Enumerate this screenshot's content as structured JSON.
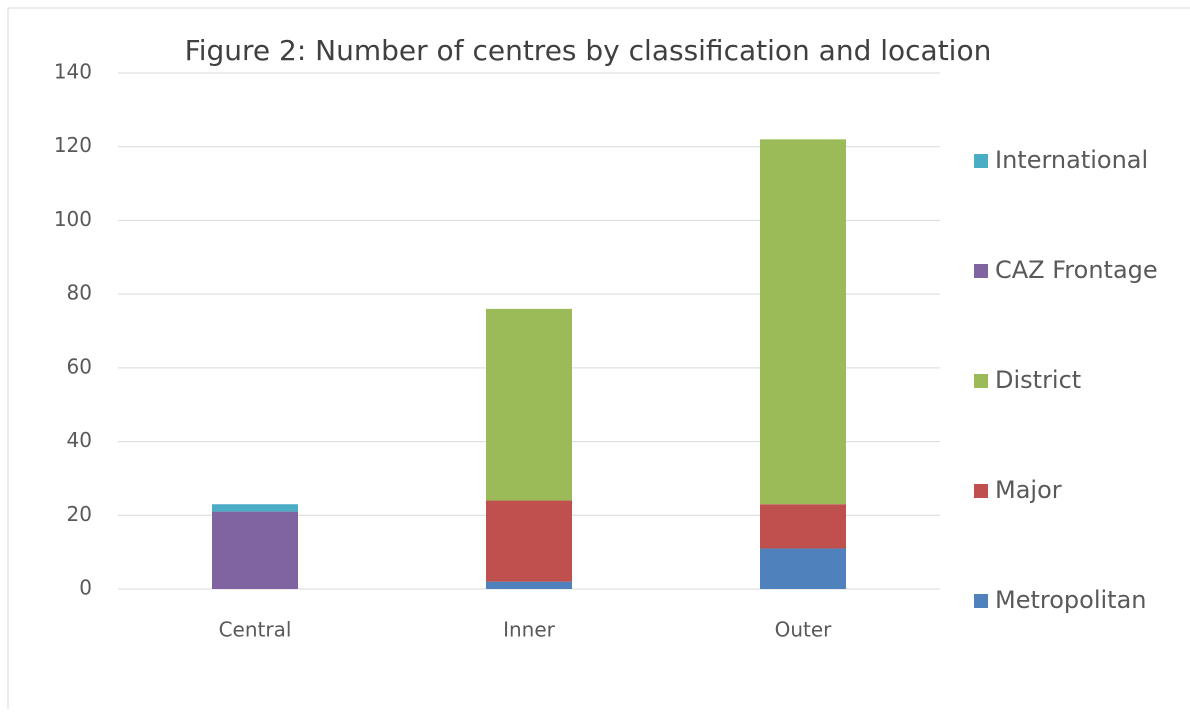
{
  "chart_data": {
    "type": "stacked_bar",
    "title": "Figure 2: Number of centres by classification and location",
    "categories": [
      "Central",
      "Inner",
      "Outer"
    ],
    "series": [
      {
        "name": "Metropolitan",
        "color": "#4f81bd",
        "values": [
          0,
          2,
          11
        ]
      },
      {
        "name": "Major",
        "color": "#c0504d",
        "values": [
          0,
          22,
          12
        ]
      },
      {
        "name": "District",
        "color": "#9bbb59",
        "values": [
          0,
          52,
          99
        ]
      },
      {
        "name": "CAZ Frontage",
        "color": "#8064a2",
        "values": [
          21,
          0,
          0
        ]
      },
      {
        "name": "International",
        "color": "#4bacc6",
        "values": [
          2,
          0,
          0
        ]
      }
    ],
    "ylim": [
      0,
      140
    ],
    "yticks": [
      0,
      20,
      40,
      60,
      80,
      100,
      120,
      140
    ],
    "grid": true,
    "legend": "right"
  }
}
